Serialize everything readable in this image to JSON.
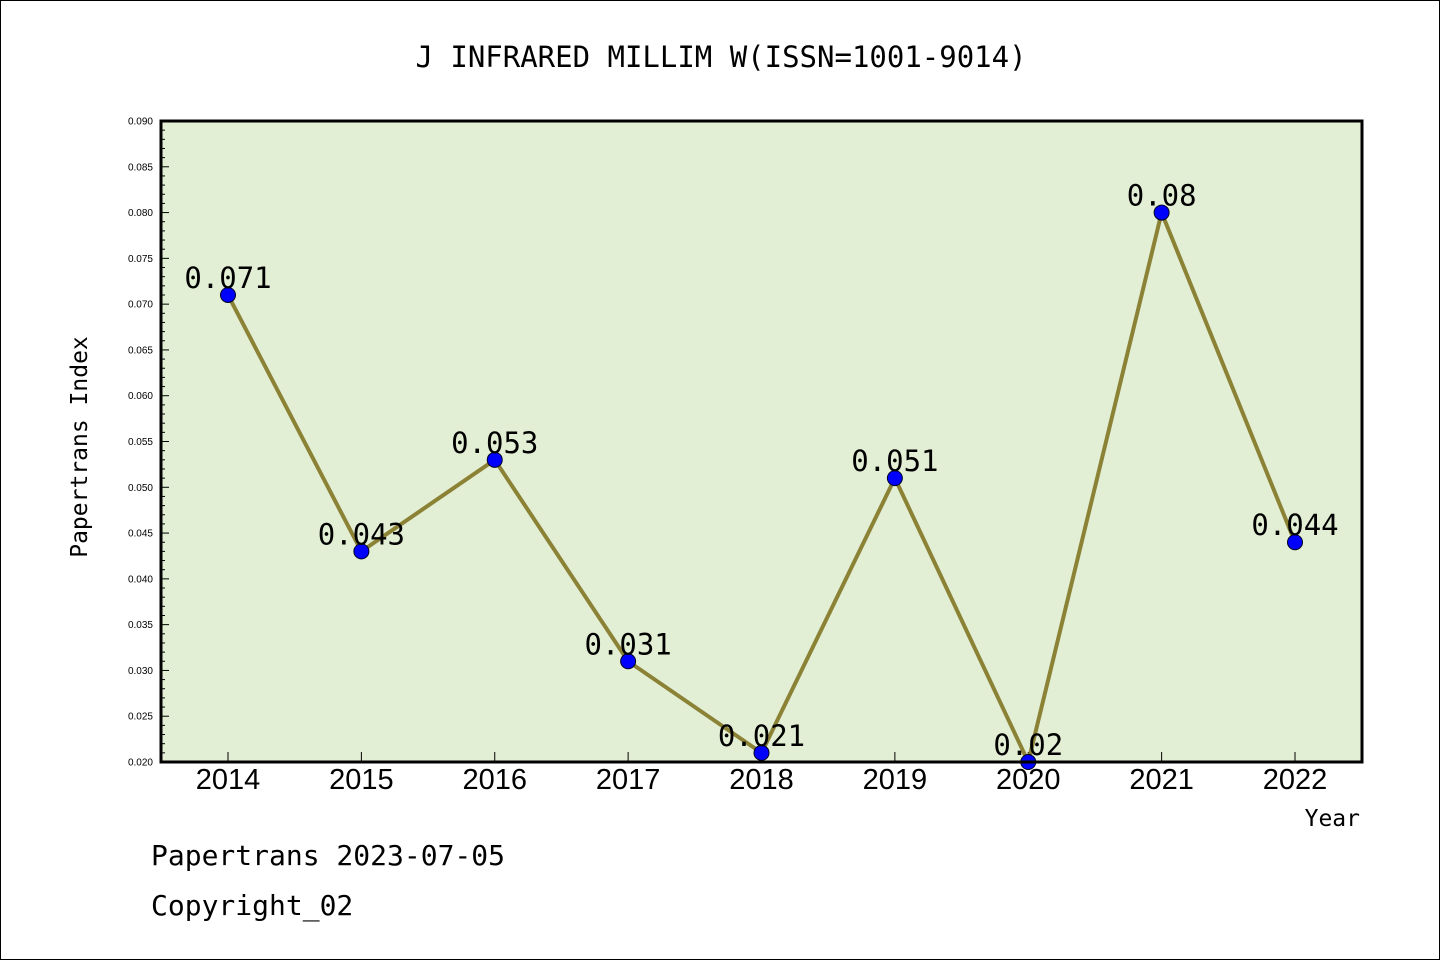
{
  "chart_data": {
    "type": "line",
    "title": "J INFRARED MILLIM W(ISSN=1001-9014)",
    "xlabel": "Year",
    "ylabel": "Papertrans Index",
    "categories": [
      "2014",
      "2015",
      "2016",
      "2017",
      "2018",
      "2019",
      "2020",
      "2021",
      "2022"
    ],
    "values": [
      0.071,
      0.043,
      0.053,
      0.031,
      0.021,
      0.051,
      0.02,
      0.08,
      0.044
    ],
    "data_labels": [
      "0.071",
      "0.043",
      "0.053",
      "0.031",
      "0.021",
      "0.051",
      "0.02",
      "0.08",
      "0.044"
    ],
    "ylim": [
      0.02,
      0.09
    ],
    "yticks": [
      "0.020",
      "0.025",
      "0.030",
      "0.035",
      "0.040",
      "0.045",
      "0.050",
      "0.055",
      "0.060",
      "0.065",
      "0.070",
      "0.075",
      "0.080",
      "0.085",
      "0.090"
    ],
    "grid": false,
    "colors": {
      "plot_background": "#e2efd5",
      "line": "#8b8236",
      "marker": "#0000ff"
    }
  },
  "footer": {
    "line1": "Papertrans 2023-07-05",
    "line2": "Copyright_02"
  }
}
